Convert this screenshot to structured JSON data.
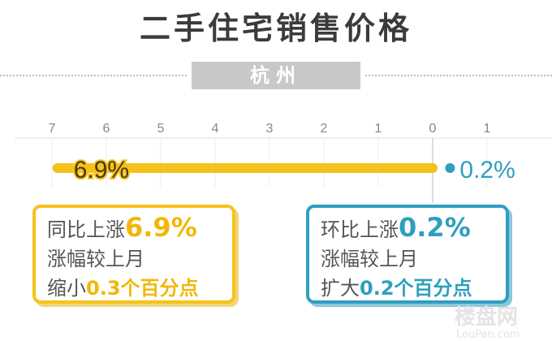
{
  "title": "二手住宅销售价格",
  "city": "杭州",
  "chart_data": {
    "type": "bar",
    "xlim": [
      7,
      -1
    ],
    "ticks": [
      "7",
      "6",
      "5",
      "4",
      "3",
      "2",
      "1",
      "0",
      "1"
    ],
    "series": [
      {
        "label": "同比",
        "value": 6.9,
        "display": "6.9%",
        "color": "#f5c21b"
      },
      {
        "label": "环比",
        "value": 0.2,
        "display": "0.2%",
        "color": "#2f9ec1"
      }
    ]
  },
  "yoy_box": {
    "line1_prefix": "同比上涨",
    "line1_value": "6.9%",
    "line2": "涨幅较上月",
    "line3_prefix": "缩小",
    "line3_value": "0.3个百分点"
  },
  "mom_box": {
    "line1_prefix": "环比上涨",
    "line1_value": "0.2%",
    "line2": "涨幅较上月",
    "line3_prefix": "扩大",
    "line3_value": "0.2个百分点"
  },
  "watermark": {
    "cn": "楼盘网",
    "en": "LouPan.com"
  }
}
